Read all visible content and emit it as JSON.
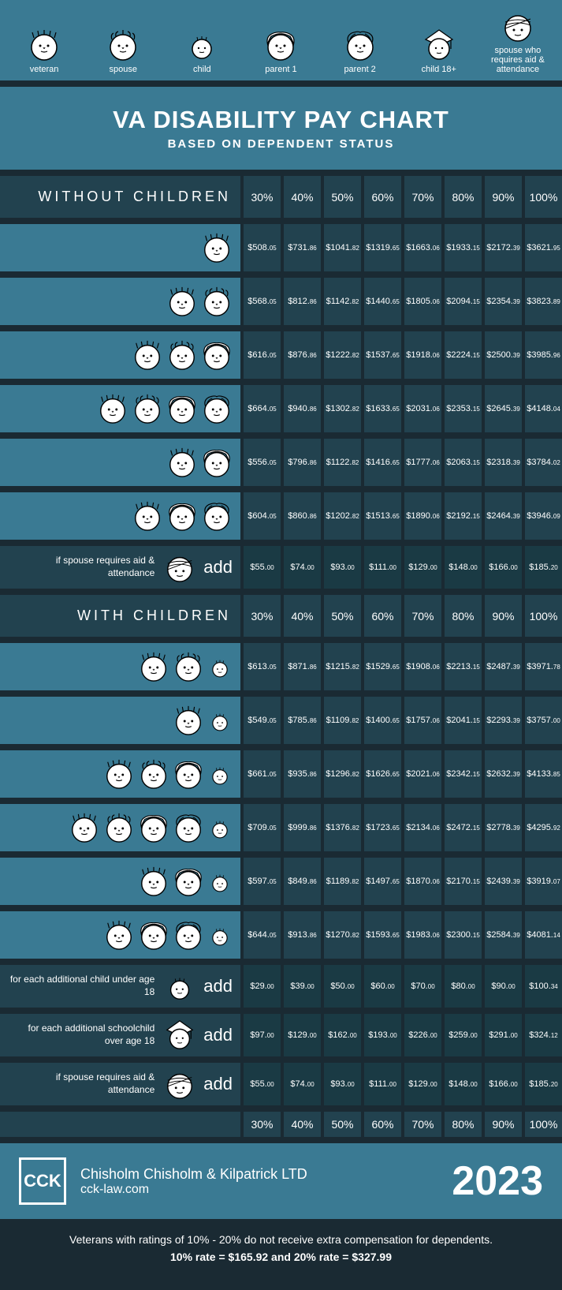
{
  "legend": [
    {
      "label": "veteran",
      "icon": "veteran"
    },
    {
      "label": "spouse",
      "icon": "spouse"
    },
    {
      "label": "child",
      "icon": "child"
    },
    {
      "label": "parent 1",
      "icon": "parent1"
    },
    {
      "label": "parent 2",
      "icon": "parent2"
    },
    {
      "label": "child 18+",
      "icon": "child18"
    },
    {
      "label": "spouse who requires aid & attendance",
      "icon": "aid"
    }
  ],
  "title": {
    "main": "VA DISABILITY PAY CHART",
    "sub": "BASED ON DEPENDENT STATUS"
  },
  "percent_headers": [
    "30%",
    "40%",
    "50%",
    "60%",
    "70%",
    "80%",
    "90%",
    "100%"
  ],
  "section1": {
    "heading": "WITHOUT CHILDREN",
    "rows": [
      {
        "icons": [
          "veteran"
        ],
        "values": [
          "$508.05",
          "$731.86",
          "$1041.82",
          "$1319.65",
          "$1663.06",
          "$1933.15",
          "$2172.39",
          "$3621.95"
        ]
      },
      {
        "icons": [
          "veteran",
          "spouse"
        ],
        "values": [
          "$568.05",
          "$812.86",
          "$1142.82",
          "$1440.65",
          "$1805.06",
          "$2094.15",
          "$2354.39",
          "$3823.89"
        ]
      },
      {
        "icons": [
          "veteran",
          "spouse",
          "parent1"
        ],
        "values": [
          "$616.05",
          "$876.86",
          "$1222.82",
          "$1537.65",
          "$1918.06",
          "$2224.15",
          "$2500.39",
          "$3985.96"
        ]
      },
      {
        "icons": [
          "veteran",
          "spouse",
          "parent1",
          "parent2"
        ],
        "values": [
          "$664.05",
          "$940.86",
          "$1302.82",
          "$1633.65",
          "$2031.06",
          "$2353.15",
          "$2645.39",
          "$4148.04"
        ]
      },
      {
        "icons": [
          "veteran",
          "parent1"
        ],
        "values": [
          "$556.05",
          "$796.86",
          "$1122.82",
          "$1416.65",
          "$1777.06",
          "$2063.15",
          "$2318.39",
          "$3784.02"
        ]
      },
      {
        "icons": [
          "veteran",
          "parent1",
          "parent2"
        ],
        "values": [
          "$604.05",
          "$860.86",
          "$1202.82",
          "$1513.65",
          "$1890.06",
          "$2192.15",
          "$2464.39",
          "$3946.09"
        ]
      }
    ],
    "add_rows": [
      {
        "text": "if spouse requires aid & attendance",
        "icon": "aid",
        "values": [
          "$55.00",
          "$74.00",
          "$93.00",
          "$111.00",
          "$129.00",
          "$148.00",
          "$166.00",
          "$185.20"
        ]
      }
    ]
  },
  "section2": {
    "heading": "WITH CHILDREN",
    "rows": [
      {
        "icons": [
          "veteran",
          "spouse",
          "child"
        ],
        "values": [
          "$613.05",
          "$871.86",
          "$1215.82",
          "$1529.65",
          "$1908.06",
          "$2213.15",
          "$2487.39",
          "$3971.78"
        ]
      },
      {
        "icons": [
          "veteran",
          "child"
        ],
        "values": [
          "$549.05",
          "$785.86",
          "$1109.82",
          "$1400.65",
          "$1757.06",
          "$2041.15",
          "$2293.39",
          "$3757.00"
        ]
      },
      {
        "icons": [
          "veteran",
          "spouse",
          "parent1",
          "child"
        ],
        "values": [
          "$661.05",
          "$935.86",
          "$1296.82",
          "$1626.65",
          "$2021.06",
          "$2342.15",
          "$2632.39",
          "$4133.85"
        ]
      },
      {
        "icons": [
          "veteran",
          "spouse",
          "parent1",
          "parent2",
          "child"
        ],
        "values": [
          "$709.05",
          "$999.86",
          "$1376.82",
          "$1723.65",
          "$2134.06",
          "$2472.15",
          "$2778.39",
          "$4295.92"
        ]
      },
      {
        "icons": [
          "veteran",
          "parent1",
          "child"
        ],
        "values": [
          "$597.05",
          "$849.86",
          "$1189.82",
          "$1497.65",
          "$1870.06",
          "$2170.15",
          "$2439.39",
          "$3919.07"
        ]
      },
      {
        "icons": [
          "veteran",
          "parent1",
          "parent2",
          "child"
        ],
        "values": [
          "$644.05",
          "$913.86",
          "$1270.82",
          "$1593.65",
          "$1983.06",
          "$2300.15",
          "$2584.39",
          "$4081.14"
        ]
      }
    ],
    "add_rows": [
      {
        "text": "for each additional child under age 18",
        "icon": "child",
        "values": [
          "$29.00",
          "$39.00",
          "$50.00",
          "$60.00",
          "$70.00",
          "$80.00",
          "$90.00",
          "$100.34"
        ]
      },
      {
        "text": "for each additional schoolchild over age 18",
        "icon": "child18",
        "values": [
          "$97.00",
          "$129.00",
          "$162.00",
          "$193.00",
          "$226.00",
          "$259.00",
          "$291.00",
          "$324.12"
        ]
      },
      {
        "text": "if spouse requires aid & attendance",
        "icon": "aid",
        "values": [
          "$55.00",
          "$74.00",
          "$93.00",
          "$111.00",
          "$129.00",
          "$148.00",
          "$166.00",
          "$185.20"
        ]
      }
    ]
  },
  "brand": {
    "logo": "CCK",
    "name": "Chisholm Chisholm & Kilpatrick LTD",
    "url": "cck-law.com",
    "year": "2023"
  },
  "footnote": {
    "line1": "Veterans with ratings of 10% - 20% do not receive extra compensation for dependents.",
    "line2": "10% rate = $165.92  and  20% rate = $327.99"
  },
  "add_word": "add",
  "colors": {
    "bg_dark": "#1a2a33",
    "bg_mid": "#22424f",
    "bg_light": "#3a7a93",
    "bg_add": "#1a3a44",
    "text": "#ffffff"
  }
}
